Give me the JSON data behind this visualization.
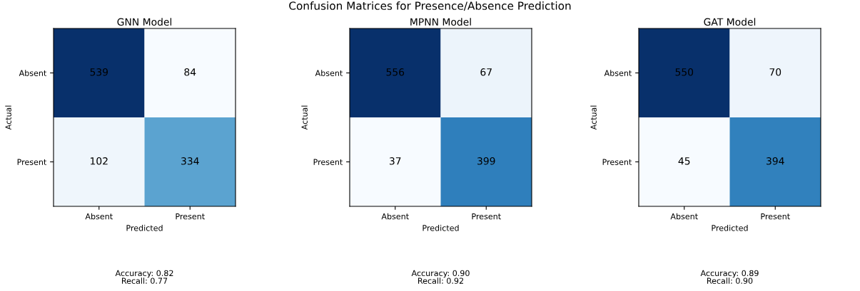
{
  "chart_data": [
    {
      "type": "heatmap",
      "title": "GNN Model",
      "xlabel": "Predicted",
      "ylabel": "Actual",
      "categories": [
        "Absent",
        "Present"
      ],
      "y_categories": [
        "Absent",
        "Present"
      ],
      "cells": [
        [
          539,
          84
        ],
        [
          102,
          334
        ]
      ],
      "data_labels": true,
      "annotations": [
        "Confusion Matrices for Presence/Absence Prediction",
        "Accuracy: 0.82\nRecall: 0.77"
      ]
    },
    {
      "type": "heatmap",
      "title": "MPNN Model",
      "xlabel": "Predicted",
      "ylabel": "Actual",
      "categories": [
        "Absent",
        "Present"
      ],
      "y_categories": [
        "Absent",
        "Present"
      ],
      "cells": [
        [
          556,
          67
        ],
        [
          37,
          399
        ]
      ],
      "data_labels": true,
      "annotations": [
        "Accuracy: 0.90\nRecall: 0.92"
      ]
    },
    {
      "type": "heatmap",
      "title": "GAT Model",
      "xlabel": "Predicted",
      "ylabel": "Actual",
      "categories": [
        "Absent",
        "Present"
      ],
      "y_categories": [
        "Absent",
        "Present"
      ],
      "cells": [
        [
          550,
          70
        ],
        [
          45,
          394
        ]
      ],
      "data_labels": true,
      "annotations": [
        "Accuracy: 0.89\nRecall: 0.90"
      ]
    }
  ]
}
